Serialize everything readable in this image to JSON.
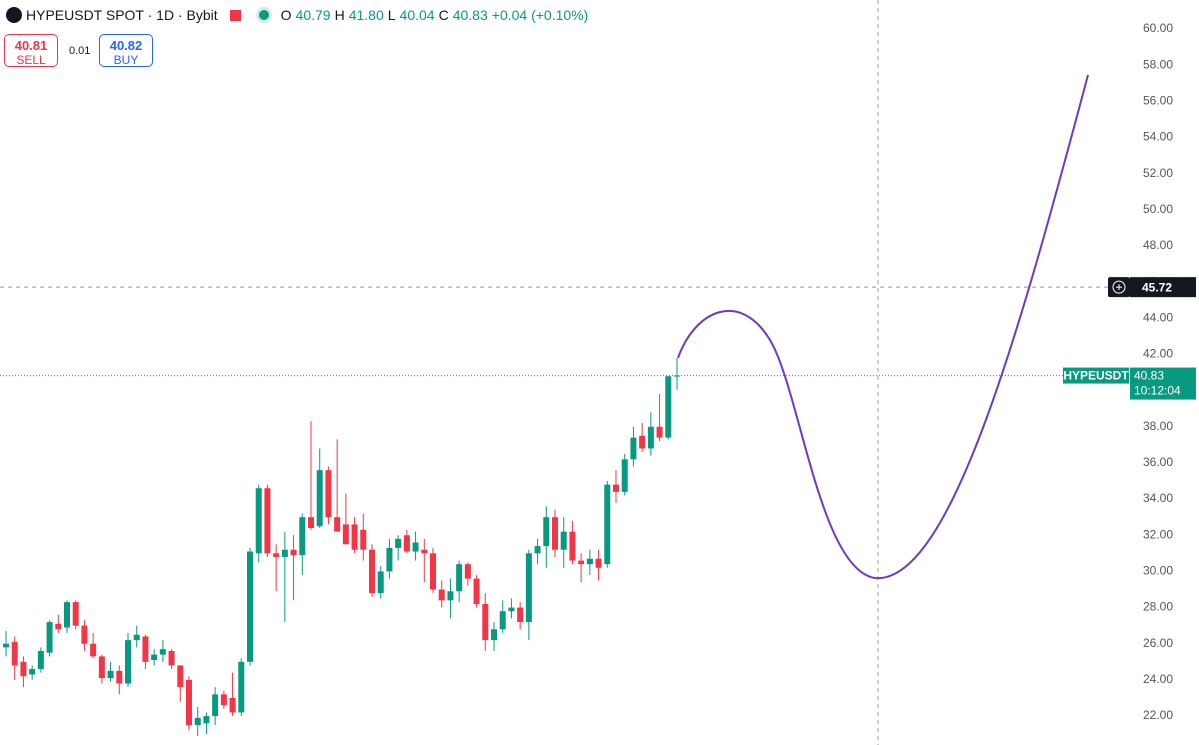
{
  "header": {
    "symbol": "HYPEUSDT SPOT · 1D · Bybit",
    "open_label": "O",
    "open": "40.79",
    "high_label": "H",
    "high": "41.80",
    "low_label": "L",
    "low": "40.04",
    "close_label": "C",
    "close": "40.83",
    "change": "+0.04 (+0.10%)"
  },
  "trade": {
    "sell_price": "40.81",
    "sell_label": "SELL",
    "spread": "0.01",
    "buy_price": "40.82",
    "buy_label": "BUY"
  },
  "chart_data": {
    "type": "candlestick",
    "open": [
      25.8,
      26.1,
      25.0,
      24.3,
      24.6,
      25.5,
      27.1,
      26.9,
      28.3,
      27.0,
      26.0,
      25.3,
      24.1,
      24.5,
      23.8,
      26.2,
      26.4,
      25.1,
      25.4,
      25.6,
      24.8,
      24.0,
      21.5,
      21.6,
      22.0,
      23.2,
      23.0,
      22.2,
      25.0,
      31.0,
      34.6,
      31.0,
      30.8,
      31.2,
      30.9,
      33.0,
      32.5,
      35.6,
      33.0,
      32.6,
      32.6,
      32.3,
      31.2,
      28.8,
      30.0,
      31.3,
      32.0,
      31.1,
      31.2,
      31.0,
      29.0,
      28.4,
      28.9,
      30.4,
      29.6,
      28.2,
      26.2,
      26.8,
      27.8,
      28.0,
      27.2,
      31.0,
      31.4,
      33.0,
      31.2,
      32.2,
      30.6,
      30.4,
      30.7,
      30.4,
      34.8,
      34.4,
      36.2,
      37.5,
      36.8,
      38.0,
      37.4,
      40.79
    ],
    "high": [
      26.7,
      26.4,
      25.3,
      24.8,
      25.8,
      27.3,
      27.6,
      28.4,
      28.4,
      27.3,
      26.6,
      25.4,
      25.0,
      24.8,
      26.6,
      27.0,
      26.5,
      25.7,
      26.2,
      25.7,
      24.8,
      24.2,
      22.5,
      22.2,
      23.6,
      23.4,
      24.4,
      25.2,
      31.3,
      34.8,
      34.8,
      31.5,
      32.2,
      32.0,
      33.2,
      38.3,
      36.8,
      35.8,
      37.3,
      34.3,
      33.0,
      33.2,
      31.5,
      30.3,
      31.8,
      32.0,
      32.3,
      32.2,
      31.8,
      31.3,
      29.5,
      29.6,
      30.6,
      30.5,
      29.8,
      28.8,
      27.2,
      28.4,
      28.5,
      28.3,
      31.2,
      31.8,
      33.6,
      33.4,
      33.0,
      32.8,
      31.0,
      31.2,
      31.2,
      35.0,
      35.6,
      36.5,
      38.0,
      38.2,
      38.8,
      39.8,
      40.8,
      41.8
    ],
    "low": [
      25.3,
      24.0,
      23.6,
      24.0,
      24.4,
      25.3,
      26.6,
      26.6,
      26.8,
      25.6,
      25.2,
      23.8,
      23.9,
      23.2,
      23.6,
      25.8,
      24.6,
      24.8,
      25.0,
      24.6,
      22.8,
      21.2,
      20.9,
      21.0,
      21.5,
      22.4,
      22.0,
      22.0,
      24.8,
      30.5,
      30.8,
      28.9,
      27.2,
      28.4,
      29.8,
      32.3,
      32.4,
      32.6,
      32.2,
      31.5,
      31.0,
      30.6,
      28.6,
      28.5,
      29.6,
      30.6,
      31.0,
      30.6,
      29.4,
      28.8,
      28.0,
      27.4,
      28.3,
      29.2,
      28.0,
      25.6,
      25.6,
      26.6,
      27.4,
      26.8,
      26.2,
      30.4,
      30.2,
      30.8,
      30.2,
      30.4,
      29.4,
      29.8,
      29.5,
      30.2,
      33.8,
      34.2,
      35.8,
      36.6,
      36.4,
      37.2,
      37.3,
      40.04
    ],
    "close": [
      26.0,
      24.8,
      24.2,
      24.6,
      25.6,
      27.2,
      26.8,
      28.3,
      27.0,
      26.0,
      25.3,
      24.1,
      24.5,
      23.8,
      26.2,
      26.5,
      25.0,
      25.4,
      25.7,
      24.8,
      23.6,
      21.5,
      21.9,
      22.0,
      23.2,
      22.6,
      22.2,
      25.0,
      31.1,
      34.6,
      31.0,
      30.8,
      31.2,
      30.9,
      33.0,
      32.4,
      35.6,
      33.0,
      32.2,
      31.5,
      31.2,
      31.2,
      28.8,
      30.0,
      31.3,
      31.8,
      31.1,
      31.6,
      31.0,
      29.0,
      28.4,
      28.9,
      30.4,
      29.6,
      28.2,
      26.2,
      26.8,
      27.8,
      28.0,
      27.2,
      31.0,
      31.4,
      33.0,
      31.2,
      32.2,
      30.6,
      30.4,
      30.7,
      30.2,
      34.8,
      34.4,
      36.2,
      37.4,
      36.8,
      38.0,
      37.4,
      40.79,
      40.83
    ],
    "up_color": "#089981",
    "down_color": "#f23645",
    "ylim": [
      20.4,
      61.6
    ],
    "yticks": [
      {
        "value": 22,
        "label": "22.00"
      },
      {
        "value": 24,
        "label": "24.00"
      },
      {
        "value": 26,
        "label": "26.00"
      },
      {
        "value": 28,
        "label": "28.00"
      },
      {
        "value": 30,
        "label": "30.00"
      },
      {
        "value": 32,
        "label": "32.00"
      },
      {
        "value": 34,
        "label": "34.00"
      },
      {
        "value": 36,
        "label": "36.00"
      },
      {
        "value": 38,
        "label": "38.00"
      },
      {
        "value": 40,
        "label": "40.00"
      },
      {
        "value": 42,
        "label": "42.00"
      },
      {
        "value": 44,
        "label": "44.00"
      },
      {
        "value": 46,
        "label": "46.00"
      },
      {
        "value": 48,
        "label": "48.00"
      },
      {
        "value": 50,
        "label": "50.00"
      },
      {
        "value": 52,
        "label": "52.00"
      },
      {
        "value": 54,
        "label": "54.00"
      },
      {
        "value": 56,
        "label": "56.00"
      },
      {
        "value": 58,
        "label": "58.00"
      },
      {
        "value": 60,
        "label": "60.00"
      }
    ],
    "last_price": 40.83,
    "last_price_label": "HYPEUSDT",
    "countdown": "10:12:04",
    "crosshair_price": 45.72
  }
}
